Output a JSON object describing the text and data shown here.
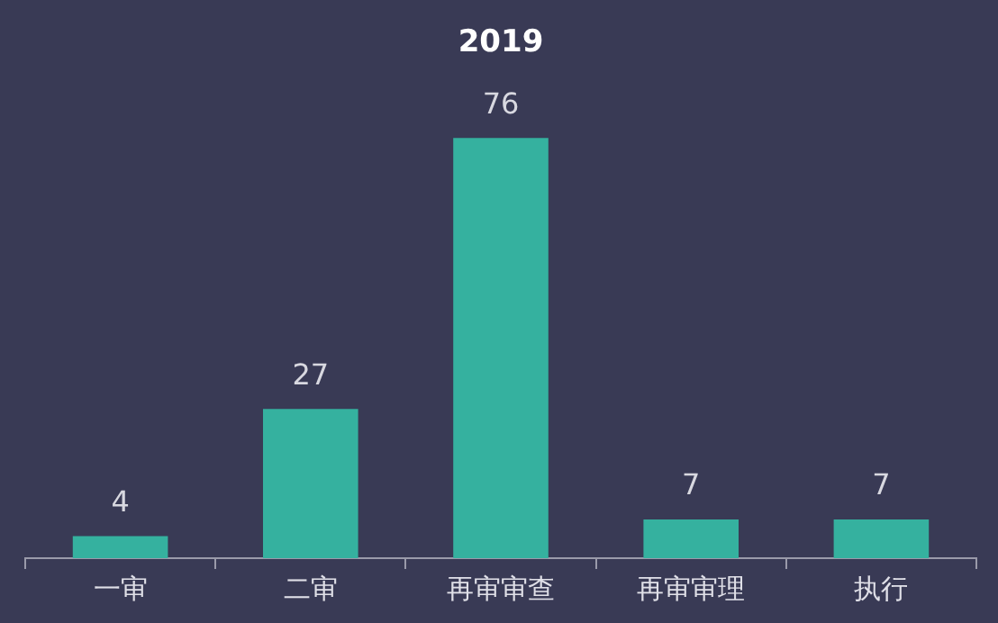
{
  "chart_data": {
    "type": "bar",
    "title": "2019",
    "categories": [
      "一审",
      "二审",
      "再审审查",
      "再审审理",
      "执行"
    ],
    "values": [
      4,
      27,
      76,
      7,
      7
    ],
    "color": "#35b19f",
    "data_labels": true,
    "grid": false,
    "legend": false
  }
}
